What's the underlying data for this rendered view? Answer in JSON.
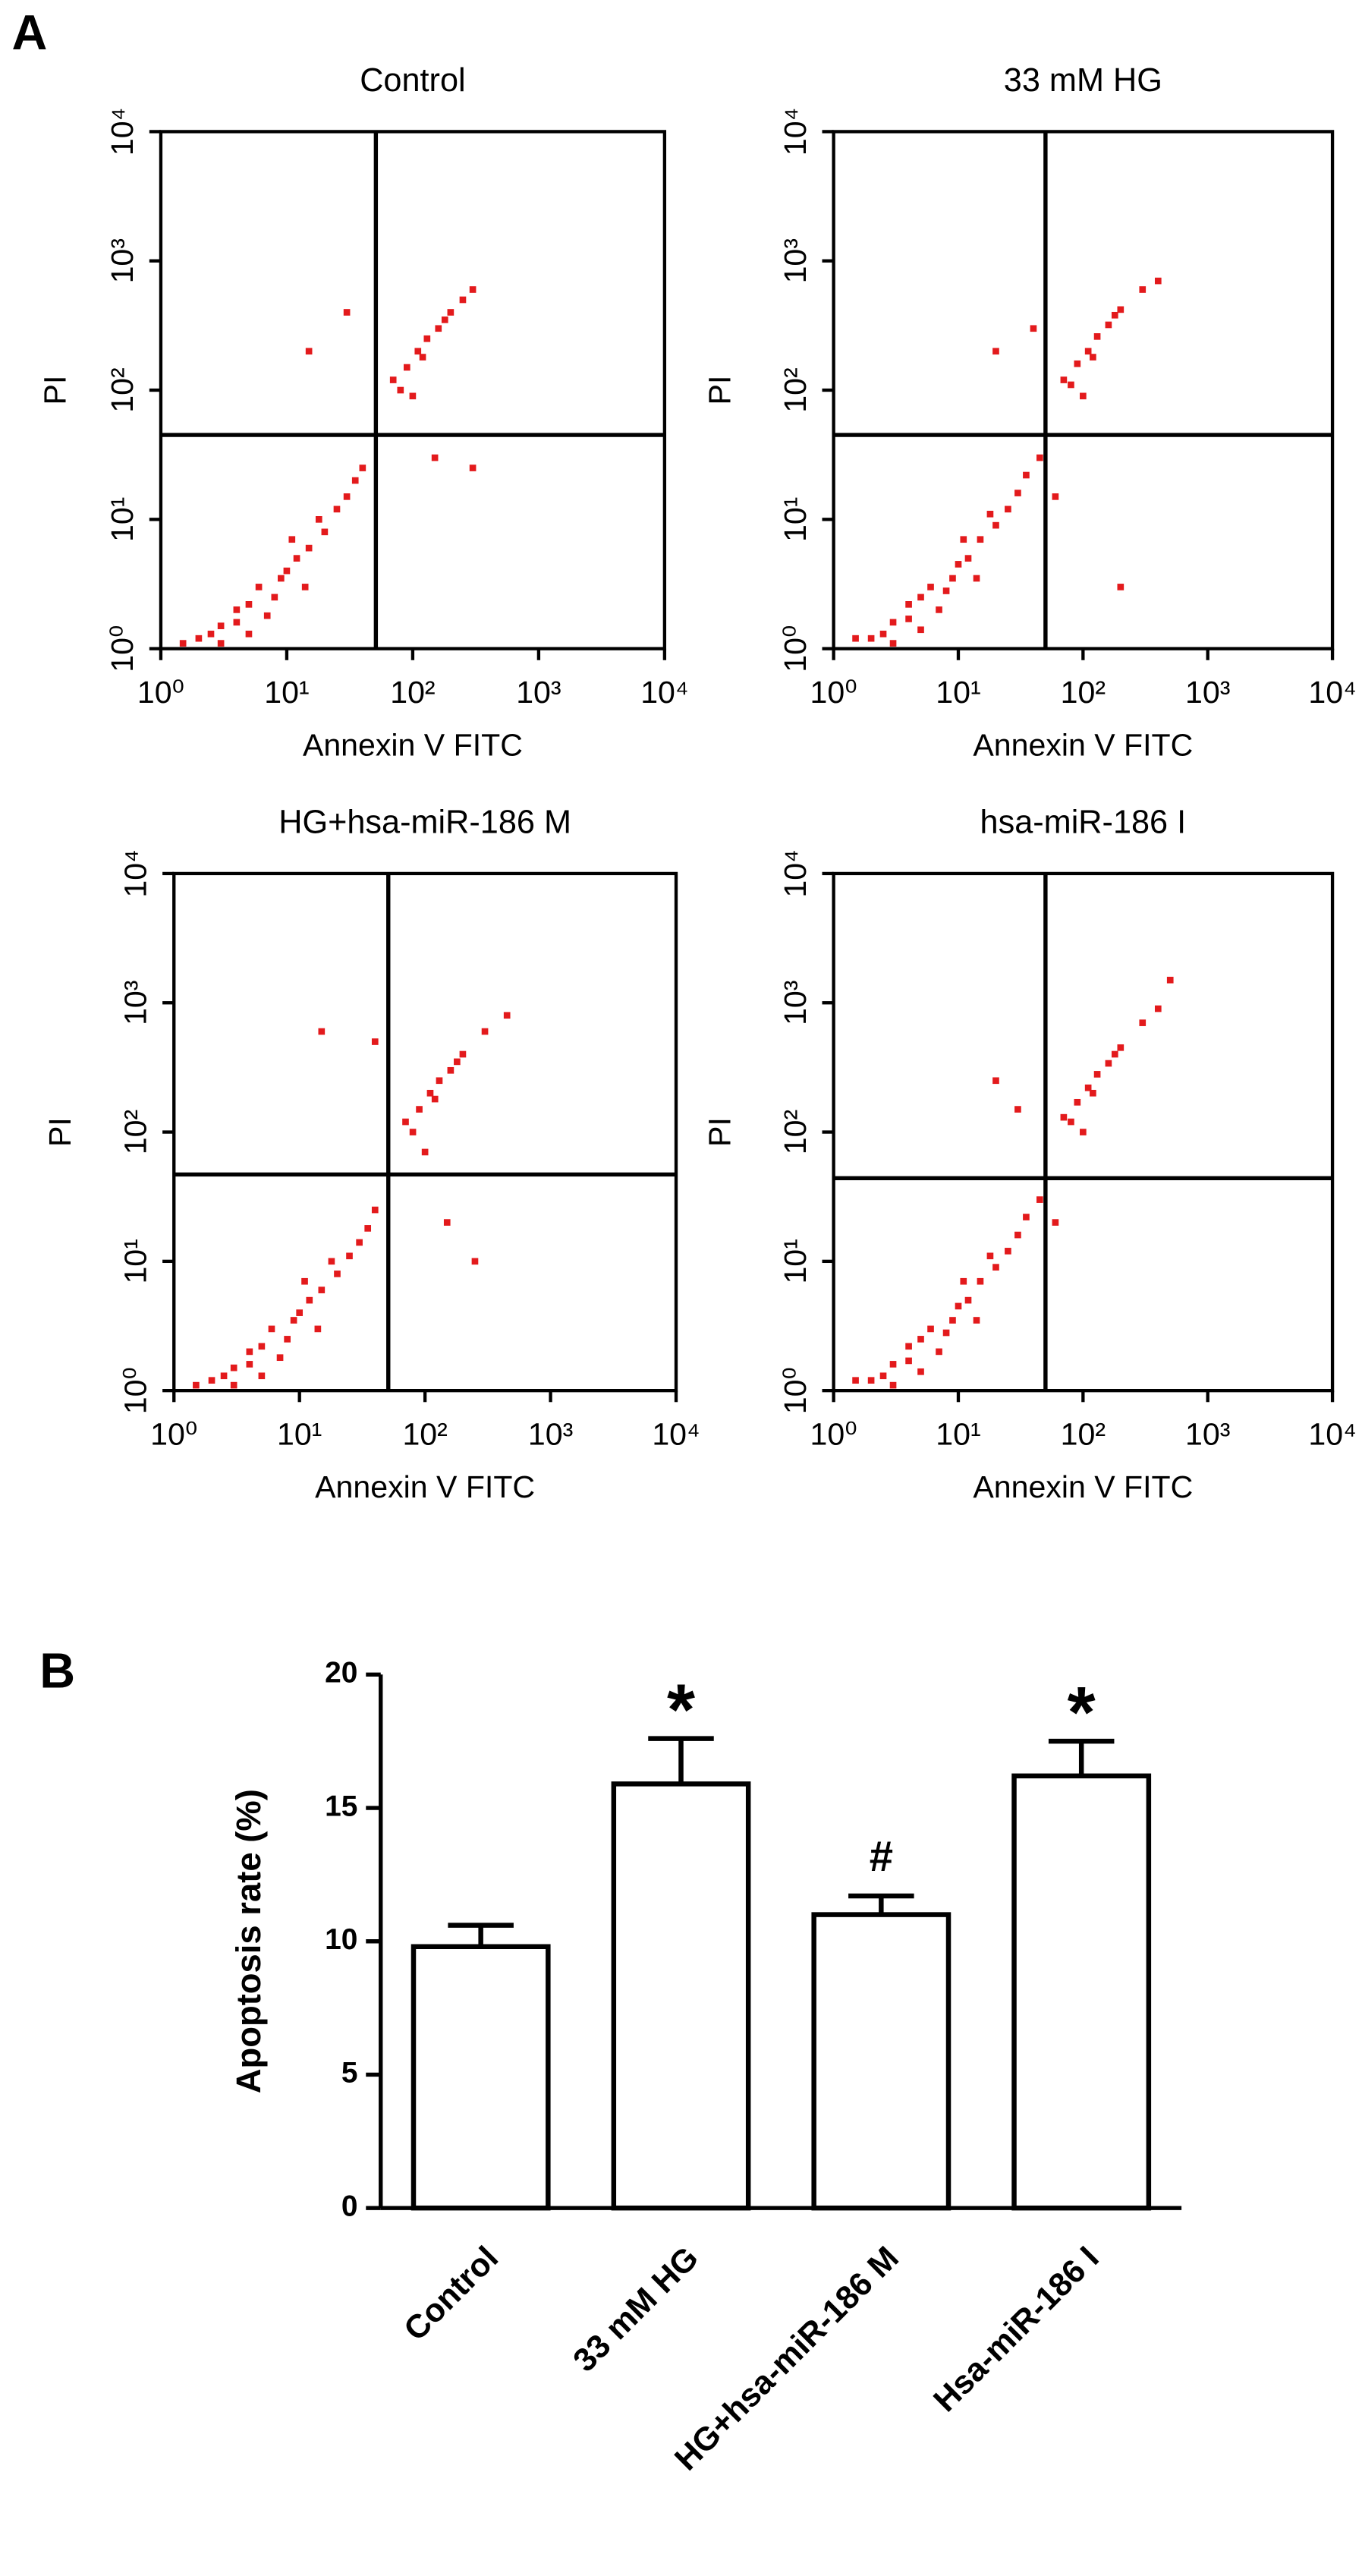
{
  "chart_data": [
    {
      "type": "scatter",
      "panel_label": "A",
      "title": "Control",
      "x_label": "Annexin V FITC",
      "y_label": "PI",
      "log_x": true,
      "log_y": true,
      "color": "#e31a1c",
      "xlim": [
        1,
        10000
      ],
      "ylim": [
        1,
        10000
      ],
      "xticks": [
        {
          "value": 1,
          "label": "10⁰"
        },
        {
          "value": 10,
          "label": "10¹"
        },
        {
          "value": 100,
          "label": "10²"
        },
        {
          "value": 1000,
          "label": "10³"
        },
        {
          "value": 10000,
          "label": "10⁴"
        }
      ],
      "yticks": [
        {
          "value": 1,
          "label": "10⁰"
        },
        {
          "value": 10,
          "label": "10¹"
        },
        {
          "value": 100,
          "label": "10²"
        },
        {
          "value": 1000,
          "label": "10³"
        },
        {
          "value": 10000,
          "label": "10⁴"
        }
      ],
      "gate": {
        "x": 51,
        "y": 45
      },
      "x": [
        2,
        3,
        4,
        5,
        6,
        8,
        10,
        12,
        15,
        20,
        25,
        30,
        3,
        7,
        9,
        5,
        14,
        18,
        11,
        4,
        2.5,
        35,
        40,
        1.5,
        70,
        90,
        110,
        130,
        160,
        200,
        250,
        80,
        120,
        180,
        300,
        100,
        30,
        15,
        150,
        300
      ],
      "y": [
        1.2,
        1.5,
        2,
        1.3,
        3,
        2.5,
        4,
        5,
        6,
        8,
        12,
        15,
        1.1,
        1.8,
        3.5,
        2.2,
        3,
        10,
        7,
        1.6,
        1.3,
        20,
        25,
        1.1,
        120,
        150,
        200,
        250,
        300,
        400,
        500,
        100,
        180,
        350,
        600,
        90,
        400,
        200,
        30,
        25
      ]
    },
    {
      "type": "scatter",
      "title": "33 mM HG",
      "x_label": "Annexin V FITC",
      "y_label": "PI",
      "log_x": true,
      "log_y": true,
      "color": "#e31a1c",
      "xlim": [
        1,
        10000
      ],
      "ylim": [
        1,
        10000
      ],
      "xticks": [
        {
          "value": 1,
          "label": "10⁰"
        },
        {
          "value": 10,
          "label": "10¹"
        },
        {
          "value": 100,
          "label": "10²"
        },
        {
          "value": 1000,
          "label": "10³"
        },
        {
          "value": 10000,
          "label": "10⁴"
        }
      ],
      "yticks": [
        {
          "value": 1,
          "label": "10⁰"
        },
        {
          "value": 10,
          "label": "10¹"
        },
        {
          "value": 100,
          "label": "10²"
        },
        {
          "value": 1000,
          "label": "10³"
        },
        {
          "value": 10000,
          "label": "10⁴"
        }
      ],
      "gate": {
        "x": 50,
        "y": 45
      },
      "x": [
        2,
        3,
        4,
        5,
        6,
        8,
        10,
        12,
        15,
        20,
        25,
        30,
        3,
        7,
        9,
        5,
        14,
        18,
        11,
        4,
        2.5,
        35,
        45,
        1.5,
        70,
        90,
        110,
        130,
        160,
        200,
        300,
        80,
        120,
        180,
        400,
        100,
        20,
        40,
        200,
        60
      ],
      "y": [
        1.2,
        1.6,
        2.2,
        1.4,
        3,
        2.8,
        4.5,
        5,
        7,
        9,
        12,
        16,
        1.1,
        2,
        3.5,
        2.5,
        3.5,
        11,
        7,
        1.7,
        1.3,
        22,
        30,
        1.2,
        120,
        160,
        200,
        260,
        320,
        420,
        600,
        110,
        180,
        380,
        700,
        90,
        200,
        300,
        3,
        15
      ]
    },
    {
      "type": "scatter",
      "title": "HG+hsa-miR-186 M",
      "x_label": "Annexin V FITC",
      "y_label": "PI",
      "log_x": true,
      "log_y": true,
      "color": "#e31a1c",
      "xlim": [
        1,
        10000
      ],
      "ylim": [
        1,
        10000
      ],
      "xticks": [
        {
          "value": 1,
          "label": "10⁰"
        },
        {
          "value": 10,
          "label": "10¹"
        },
        {
          "value": 100,
          "label": "10²"
        },
        {
          "value": 1000,
          "label": "10³"
        },
        {
          "value": 10000,
          "label": "10⁴"
        }
      ],
      "yticks": [
        {
          "value": 1,
          "label": "10⁰"
        },
        {
          "value": 10,
          "label": "10¹"
        },
        {
          "value": 100,
          "label": "10²"
        },
        {
          "value": 1000,
          "label": "10³"
        },
        {
          "value": 10000,
          "label": "10⁴"
        }
      ],
      "gate": {
        "x": 51,
        "y": 47
      },
      "x": [
        2,
        3,
        4,
        5,
        6,
        8,
        10,
        12,
        15,
        20,
        25,
        30,
        3,
        7,
        9,
        5,
        14,
        18,
        11,
        4,
        2.5,
        35,
        40,
        1.5,
        70,
        90,
        110,
        130,
        160,
        200,
        300,
        80,
        120,
        180,
        450,
        100,
        15,
        40,
        150,
        250
      ],
      "y": [
        1.2,
        1.5,
        2,
        1.3,
        3,
        2.5,
        4,
        5,
        6,
        8,
        11,
        14,
        1.1,
        1.8,
        3.5,
        2.2,
        3,
        10,
        7,
        1.6,
        1.3,
        18,
        25,
        1.1,
        120,
        150,
        200,
        250,
        300,
        400,
        600,
        100,
        180,
        350,
        800,
        70,
        600,
        500,
        20,
        10
      ]
    },
    {
      "type": "scatter",
      "title": "hsa-miR-186 I",
      "x_label": "Annexin V FITC",
      "y_label": "PI",
      "log_x": true,
      "log_y": true,
      "color": "#e31a1c",
      "xlim": [
        1,
        10000
      ],
      "ylim": [
        1,
        10000
      ],
      "xticks": [
        {
          "value": 1,
          "label": "10⁰"
        },
        {
          "value": 10,
          "label": "10¹"
        },
        {
          "value": 100,
          "label": "10²"
        },
        {
          "value": 1000,
          "label": "10³"
        },
        {
          "value": 10000,
          "label": "10⁴"
        }
      ],
      "yticks": [
        {
          "value": 1,
          "label": "10⁰"
        },
        {
          "value": 10,
          "label": "10¹"
        },
        {
          "value": 100,
          "label": "10²"
        },
        {
          "value": 1000,
          "label": "10³"
        },
        {
          "value": 10000,
          "label": "10⁴"
        }
      ],
      "gate": {
        "x": 50,
        "y": 44
      },
      "x": [
        2,
        3,
        4,
        5,
        6,
        8,
        10,
        12,
        15,
        20,
        25,
        30,
        3,
        7,
        9,
        5,
        14,
        18,
        11,
        4,
        2.5,
        35,
        45,
        1.5,
        70,
        90,
        110,
        130,
        160,
        200,
        300,
        80,
        120,
        180,
        400,
        100,
        20,
        30,
        500,
        60
      ],
      "y": [
        1.2,
        1.6,
        2.2,
        1.4,
        3,
        2.8,
        4.5,
        5,
        7,
        9,
        12,
        16,
        1.1,
        2,
        3.5,
        2.5,
        3.5,
        11,
        7,
        1.7,
        1.3,
        22,
        30,
        1.2,
        130,
        170,
        220,
        280,
        340,
        450,
        700,
        120,
        200,
        400,
        900,
        100,
        250,
        150,
        1500,
        20
      ]
    },
    {
      "type": "bar",
      "panel_label": "B",
      "y_label": "Apoptosis rate (%)",
      "color": "#ffffff",
      "edge_color": "#000000",
      "categories": [
        "Control",
        "33 mM HG",
        "HG+hsa-miR-186 M",
        "Hsa-miR-186 I"
      ],
      "values": [
        9.8,
        15.9,
        11.0,
        16.2
      ],
      "errors": [
        0.8,
        1.7,
        0.7,
        1.3
      ],
      "annotations": [
        null,
        "*",
        "#",
        "*"
      ],
      "ylim": [
        0,
        20
      ],
      "yticks": [
        0,
        5,
        10,
        15,
        20
      ]
    }
  ]
}
